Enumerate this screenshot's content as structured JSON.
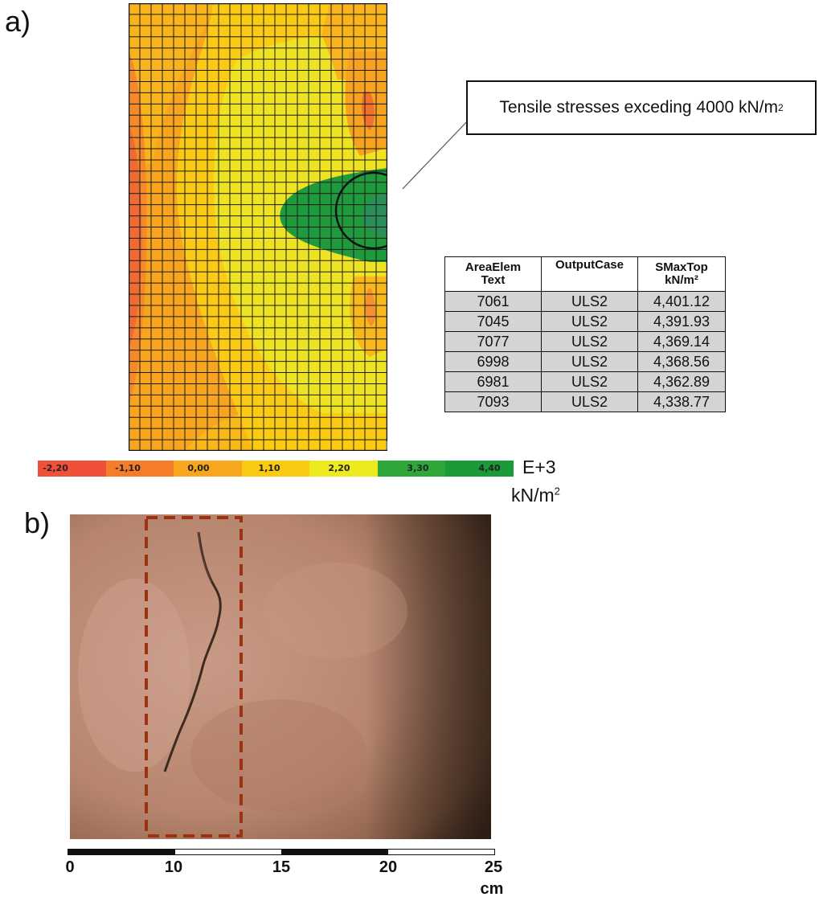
{
  "labels": {
    "panel_a": "a)",
    "panel_b": "b)"
  },
  "callout": {
    "text": "Tensile stresses exceding 4000 kN/m",
    "sup": "2"
  },
  "table": {
    "headers": [
      {
        "line1": "AreaElem",
        "line2": "Text"
      },
      {
        "line1": "OutputCase",
        "line2": ""
      },
      {
        "line1": "SMaxTop",
        "line2": "kN/m²"
      }
    ],
    "rows": [
      [
        "7061",
        "ULS2",
        "4,401.12"
      ],
      [
        "7045",
        "ULS2",
        "4,391.93"
      ],
      [
        "7077",
        "ULS2",
        "4,369.14"
      ],
      [
        "6998",
        "ULS2",
        "4,368.56"
      ],
      [
        "6981",
        "ULS2",
        "4,362.89"
      ],
      [
        "7093",
        "ULS2",
        "4,338.77"
      ]
    ]
  },
  "colorbar": {
    "ticks": [
      "-2,20",
      "-1,10",
      "0,00",
      "1,10",
      "2,20",
      "3,30",
      "4,40"
    ],
    "exponent": "E+3",
    "unit": "kN/m",
    "unit_sup": "2",
    "colors": [
      "#f0503a",
      "#f57c2a",
      "#f8a61e",
      "#fbcb14",
      "#eeea20",
      "#2fa63a",
      "#1b9a3a"
    ]
  },
  "scale": {
    "ticks": [
      "0",
      "10",
      "15",
      "20",
      "25"
    ],
    "unit": "cm"
  }
}
